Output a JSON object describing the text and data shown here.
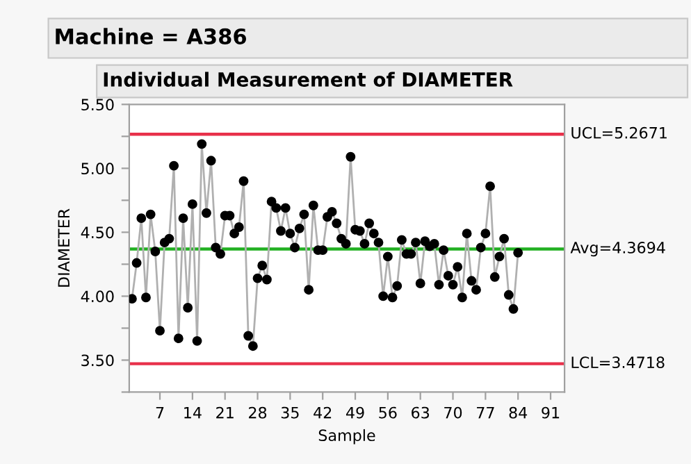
{
  "chart_data": {
    "type": "line",
    "title": "Machine = A386",
    "subtitle": "Individual Measurement of DIAMETER",
    "xlabel": "Sample",
    "ylabel": "DIAMETER",
    "x": [
      1,
      2,
      3,
      4,
      5,
      6,
      7,
      8,
      9,
      10,
      11,
      12,
      13,
      14,
      15,
      16,
      17,
      18,
      19,
      20,
      21,
      22,
      23,
      24,
      25,
      26,
      27,
      28,
      29,
      30,
      31,
      32,
      33,
      34,
      35,
      36,
      37,
      38,
      39,
      40,
      41,
      42,
      43,
      44,
      45,
      46,
      47,
      48,
      49,
      50,
      51,
      52,
      53,
      54,
      55,
      56,
      57,
      58,
      59,
      60,
      61,
      62,
      63,
      64,
      65,
      66,
      67,
      68,
      69,
      70,
      71,
      72,
      73,
      74,
      75,
      76,
      77,
      78,
      79,
      80,
      81,
      82,
      83,
      84
    ],
    "series": [
      {
        "color": "#000000",
        "values": [
          3.98,
          4.26,
          4.61,
          3.99,
          4.64,
          4.35,
          3.73,
          4.42,
          4.45,
          5.02,
          3.67,
          4.61,
          3.91,
          4.72,
          3.65,
          5.19,
          4.65,
          5.06,
          4.38,
          4.33,
          4.63,
          4.63,
          4.49,
          4.54,
          4.9,
          3.69,
          3.61,
          4.14,
          4.24,
          4.13,
          4.74,
          4.69,
          4.51,
          4.69,
          4.49,
          4.38,
          4.53,
          4.64,
          4.05,
          4.71,
          4.36,
          4.36,
          4.62,
          4.66,
          4.57,
          4.45,
          4.41,
          5.09,
          4.52,
          4.51,
          4.41,
          4.57,
          4.49,
          4.42,
          4.0,
          4.31,
          3.99,
          4.08,
          4.44,
          4.33,
          4.33,
          4.42,
          4.1,
          4.43,
          4.39,
          4.41,
          4.09,
          4.36,
          4.16,
          4.09,
          4.23,
          3.99,
          4.49,
          4.12,
          4.05,
          4.38,
          4.49,
          4.86,
          4.15,
          4.31,
          4.45,
          4.01,
          3.9,
          4.34
        ]
      }
    ],
    "marker": "circle",
    "grid": false,
    "legend": false,
    "xlim": [
      0.4,
      94
    ],
    "xticks": [
      7,
      14,
      21,
      28,
      35,
      42,
      49,
      56,
      63,
      70,
      77,
      84,
      91
    ],
    "ylim": [
      3.25,
      5.5
    ],
    "yticks": [
      {
        "value": 3.25,
        "label": null
      },
      {
        "value": 3.5,
        "label": "3.50"
      },
      {
        "value": 3.75,
        "label": null
      },
      {
        "value": 4.0,
        "label": "4.00"
      },
      {
        "value": 4.25,
        "label": null
      },
      {
        "value": 4.5,
        "label": "4.50"
      },
      {
        "value": 4.75,
        "label": null
      },
      {
        "value": 5.0,
        "label": "5.00"
      },
      {
        "value": 5.25,
        "label": null
      },
      {
        "value": 5.5,
        "label": "5.50"
      }
    ],
    "ref_lines": [
      {
        "axis": "y",
        "value": 5.2671,
        "label": "UCL=5.2671",
        "color": "#e8304a"
      },
      {
        "axis": "y",
        "value": 4.3694,
        "label": "Avg=4.3694",
        "color": "#22b022"
      },
      {
        "axis": "y",
        "value": 3.4718,
        "label": "LCL=3.4718",
        "color": "#e8304a"
      }
    ]
  }
}
